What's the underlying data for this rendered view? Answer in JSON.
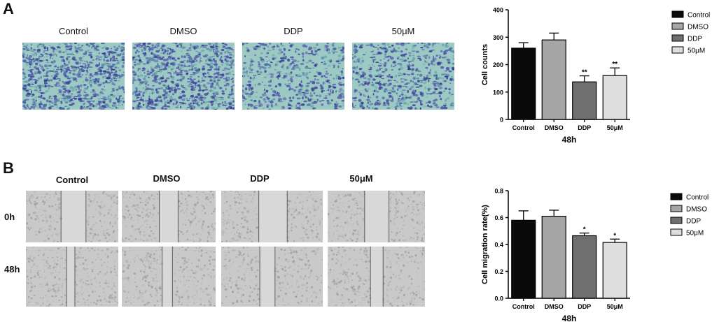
{
  "panelA": {
    "letter": "A",
    "image_labels": [
      "Control",
      "DMSO",
      "DDP",
      "50μM"
    ]
  },
  "panelB": {
    "letter": "B",
    "col_labels": [
      "Control",
      "DMSO",
      "DDP",
      "50μM"
    ],
    "row_labels": [
      "0h",
      "48h"
    ]
  },
  "colors": {
    "control": "#0a0a0a",
    "dmso": "#a6a6a6",
    "ddp": "#6f6f6f",
    "fifty": "#dedede",
    "stain_purple": "#4b4fa8",
    "stain_teal": "#5aa7a0"
  },
  "chart_data": [
    {
      "type": "bar",
      "categories": [
        "Control",
        "DMSO",
        "DDP",
        "50μM"
      ],
      "values": [
        260,
        290,
        137,
        160
      ],
      "errors": [
        20,
        25,
        22,
        28
      ],
      "significance": [
        "",
        "",
        "**",
        "**"
      ],
      "ylabel": "Cell counts",
      "xlabel": "48h",
      "ylim": [
        0,
        400
      ],
      "yticks": [
        "0",
        "100",
        "200",
        "300",
        "400"
      ],
      "legend": [
        "Control",
        "DMSO",
        "DDP",
        "50μM"
      ],
      "legend_placement": "right"
    },
    {
      "type": "bar",
      "categories": [
        "Control",
        "DMSO",
        "DDP",
        "50μM"
      ],
      "values": [
        0.58,
        0.61,
        0.465,
        0.415
      ],
      "errors": [
        0.07,
        0.045,
        0.02,
        0.025
      ],
      "significance": [
        "",
        "",
        "*",
        "*"
      ],
      "ylabel": "Cell migration rate(%)",
      "xlabel": "48h",
      "ylim": [
        0,
        0.8
      ],
      "yticks": [
        "0.0",
        "0.2",
        "0.4",
        "0.6",
        "0.8"
      ],
      "legend": [
        "Control",
        "DMSO",
        "DDP",
        "50μM"
      ],
      "legend_placement": "right"
    }
  ]
}
